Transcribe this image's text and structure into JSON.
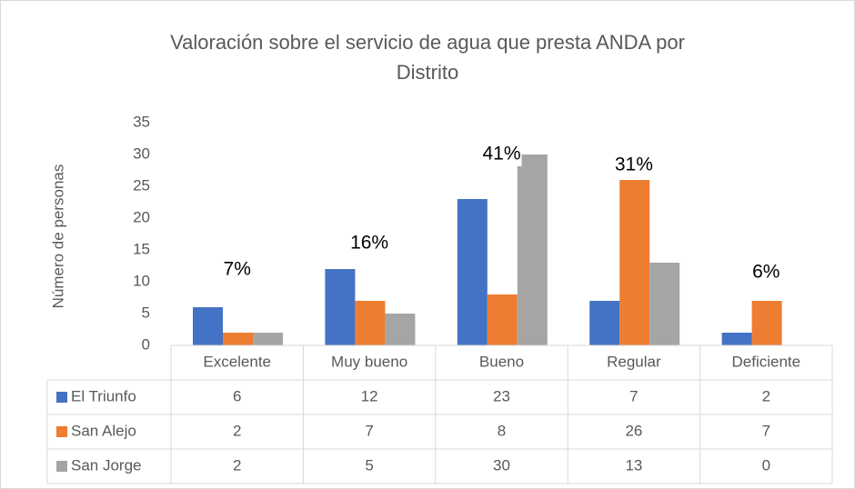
{
  "chart_data": {
    "type": "bar",
    "title": "Valoración sobre el servicio de agua que presta ANDA por Distrito",
    "y_label": "Número de personas",
    "categories": [
      "Excelente",
      "Muy bueno",
      "Bueno",
      "Regular",
      "Deficiente"
    ],
    "series": [
      {
        "name": "El Triunfo",
        "color": "#4472c4",
        "values": [
          6,
          12,
          23,
          7,
          2
        ]
      },
      {
        "name": "San Alejo",
        "color": "#ed7d31",
        "values": [
          2,
          7,
          8,
          26,
          7
        ]
      },
      {
        "name": "San Jorge",
        "color": "#a5a5a5",
        "values": [
          2,
          5,
          30,
          13,
          0
        ]
      }
    ],
    "annotations": [
      "7%",
      "16%",
      "41%",
      "31%",
      "6%"
    ],
    "ylim": [
      0,
      35
    ],
    "yticks": [
      0,
      5,
      10,
      15,
      20,
      25,
      30,
      35
    ],
    "data_table": true
  }
}
